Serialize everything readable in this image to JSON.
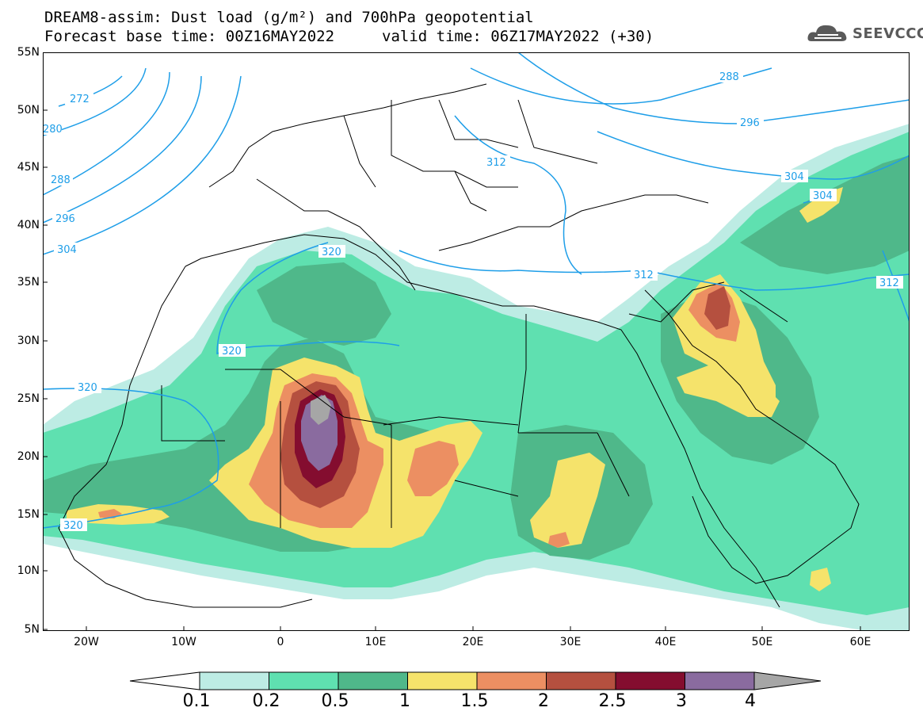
{
  "title": {
    "line1": "DREAM8-assim: Dust load (g/m²) and 700hPa geopotential",
    "line2": "Forecast base time: 00Z16MAY2022",
    "line2b": "valid time: 06Z17MAY2022 (+30)"
  },
  "logo": {
    "text": "SEEVCCC",
    "icon": "cloud-logo-icon"
  },
  "axes": {
    "lat_labels": [
      "55N",
      "50N",
      "45N",
      "40N",
      "35N",
      "30N",
      "25N",
      "20N",
      "15N",
      "10N",
      "5N"
    ],
    "lon_labels": [
      "20W",
      "10W",
      "0",
      "10E",
      "20E",
      "30E",
      "40E",
      "50E",
      "60E"
    ]
  },
  "colorbar": {
    "labels": [
      "0.1",
      "0.2",
      "0.5",
      "1",
      "1.5",
      "2",
      "2.5",
      "3",
      "4"
    ],
    "colors": [
      "#bdece4",
      "#5fe0b0",
      "#4fb88a",
      "#f5e36b",
      "#ec8f62",
      "#b5503f",
      "#840d2f",
      "#8a6b9f",
      "#a6a6a6"
    ]
  },
  "contours": {
    "color": "#1e9ee8",
    "labels": [
      "272",
      "280",
      "288",
      "296",
      "304",
      "320",
      "320",
      "320",
      "320",
      "312",
      "312",
      "312",
      "288",
      "296",
      "304",
      "304"
    ]
  },
  "map": {
    "extent_lon": [
      -25,
      65
    ],
    "extent_lat": [
      5,
      55
    ]
  }
}
